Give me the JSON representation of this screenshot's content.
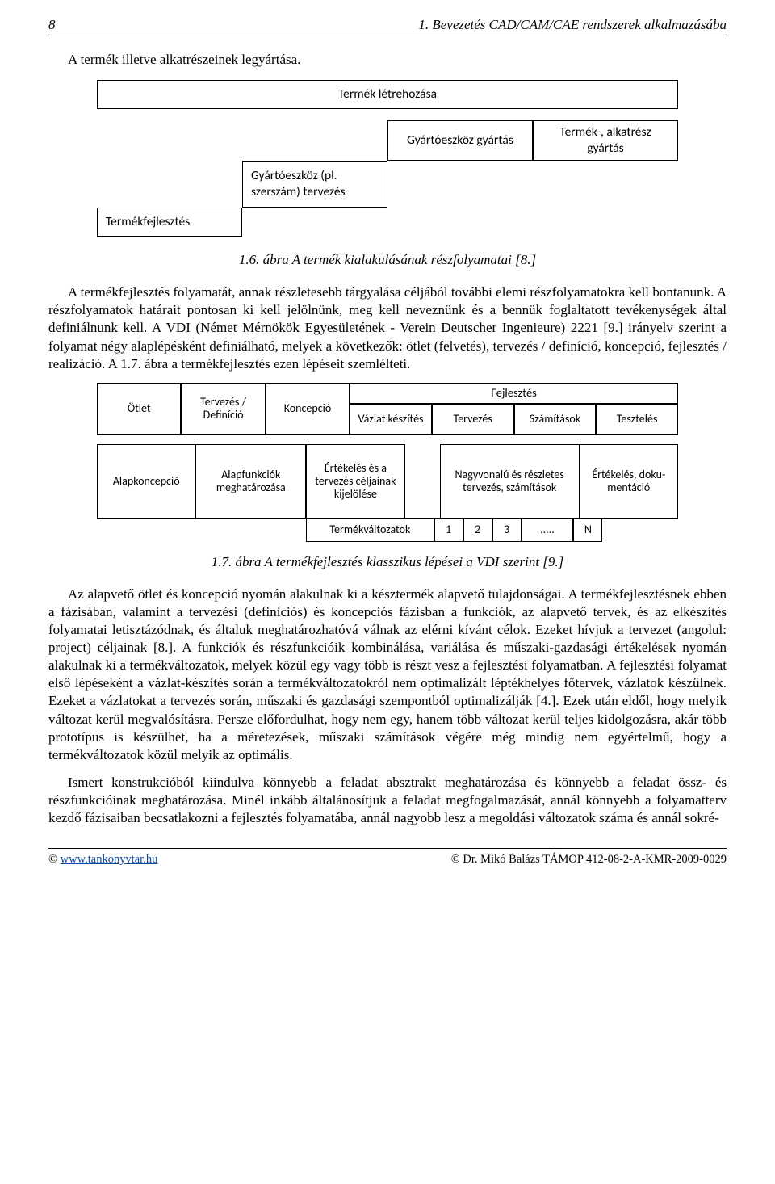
{
  "header": {
    "page_num": "8",
    "chapter": "1. Bevezetés CAD/CAM/CAE rendszerek alkalmazásába"
  },
  "intro": "A termék illetve alkatrészeinek legyártása.",
  "diagram1": {
    "row1": "Termék létrehozása",
    "r3a": "Gyártóeszköz gyártás",
    "r3b": "Termék-, alkatrész gyártás",
    "r4": "Gyártóeszköz (pl. szerszám) tervezés",
    "r5": "Termékfejlesztés"
  },
  "fig1_caption": "1.6. ábra A termék kialakulásának részfolyamatai [8.]",
  "para1": "A termékfejlesztés folyamatát, annak részletesebb tárgyalása céljából további elemi részfolyamatokra kell bontanunk. A részfolyamatok határait pontosan ki kell jelölnünk, meg kell neveznünk és a bennük foglaltatott tevékenységek által definiálnunk kell. A VDI (Német Mérnökök Egyesületének - Verein Deutscher Ingenieure) 2221 [9.] irányelv szerint a folyamat négy alaplépésként definiálható, melyek a következők: ötlet (felvetés), tervezés / definíció, koncepció, fejlesztés / realizáció. A 1.7. ábra a termékfejlesztés ezen lépéseit szemlélteti.",
  "diagram2": {
    "top": {
      "otlet": "Ötlet",
      "terv": "Tervezés / Definíció",
      "konc": "Koncepció",
      "fej": "Fejlesztés",
      "sub": [
        "Vázlat készítés",
        "Tervezés",
        "Számítások",
        "Tesztelés"
      ]
    },
    "row2": {
      "a": "Alapkoncepció",
      "b": "Alapfunkciók meghatározása",
      "c": "Értékelés és a tervezés céljainak kijelölése",
      "d": "Nagyvonalú és részletes tervezés, számítások",
      "e": "Értékelés, doku-mentáció"
    },
    "row3": {
      "label": "Termékváltozatok",
      "nums": [
        "1",
        "2",
        "3"
      ],
      "dots": ".....",
      "n": "N"
    }
  },
  "fig2_caption": "1.7. ábra A termékfejlesztés klasszikus lépései a VDI szerint [9.]",
  "para2": "Az alapvető ötlet és koncepció nyomán alakulnak ki a késztermék alapvető tulajdonságai. A termékfejlesztésnek ebben a fázisában, valamint a tervezési (definíciós) és koncepciós fázisban a funkciók, az alapvető tervek, és az elkészítés folyamatai letisztázódnak, és általuk meghatározhatóvá válnak az elérni kívánt célok. Ezeket hívjuk a tervezet (angolul: project) céljainak [8.]. A funkciók és részfunkcióik kombinálása, variálása és műszaki-gazdasági értékelések nyomán alakulnak ki a termékváltozatok, melyek közül egy vagy több is részt vesz a fejlesztési folyamatban. A fejlesztési folyamat első lépéseként a vázlat-készítés során a termékváltozatokról nem optimalizált léptékhelyes főtervek, vázlatok készülnek. Ezeket a vázlatokat a tervezés során, műszaki és gazdasági szempontból optimalizálják [4.]. Ezek után eldől, hogy melyik változat kerül megvalósításra. Persze előfordulhat, hogy nem egy, hanem több változat kerül teljes kidolgozásra, akár több prototípus is készülhet, ha a méretezések, műszaki számítások végére még mindig nem egyértelmű, hogy a termékváltozatok közül melyik az optimális.",
  "para3": "Ismert konstrukcióból kiindulva könnyebb a feladat absztrakt meghatározása és könnyebb a feladat össz- és részfunkcióinak meghatározása. Minél inkább általánosítjuk a feladat megfogalmazását, annál könnyebb a folyamatterv kezdő fázisaiban becsatlakozni a fejlesztés folyamatába, annál nagyobb lesz a megoldási változatok száma és annál sokré-",
  "footer": {
    "left": "www.tankonyvtar.hu",
    "copy": "©",
    "right": "Dr. Mikó Balázs TÁMOP 412-08-2-A-KMR-2009-0029"
  }
}
